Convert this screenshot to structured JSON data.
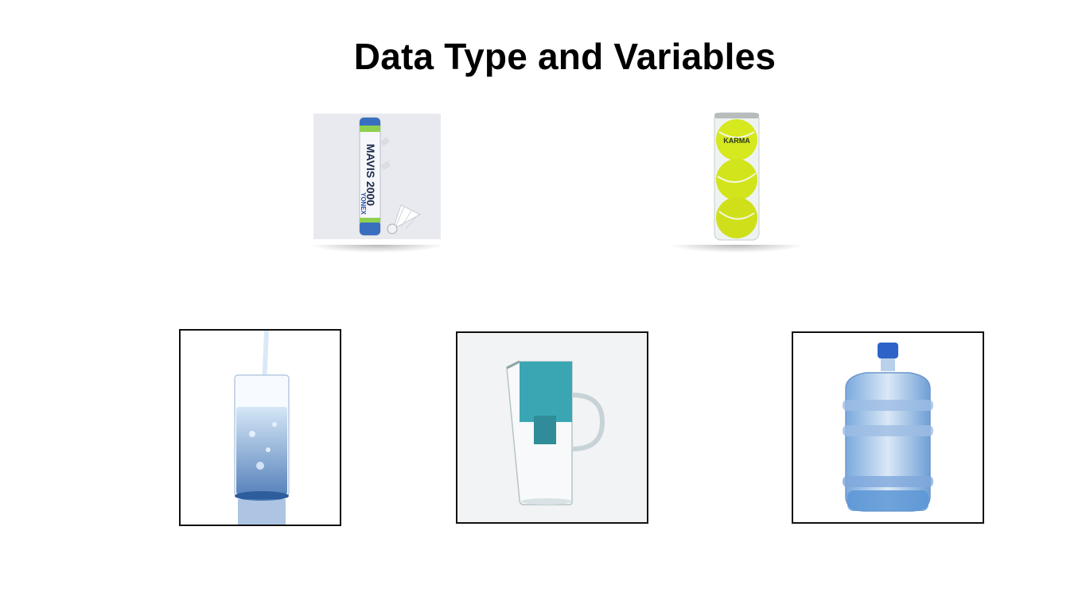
{
  "slide": {
    "title": "Data Type and Variables"
  },
  "images": {
    "shuttlecock_tube": {
      "icon": "shuttlecock-tube-icon",
      "brand_text": "MAVIS 2000",
      "maker_text": "YONEX"
    },
    "tennis_ball_can": {
      "icon": "tennis-ball-can-icon",
      "ball_color": "#d6e81e"
    },
    "water_glass": {
      "icon": "water-glass-icon"
    },
    "water_pitcher": {
      "icon": "water-pitcher-icon",
      "accent": "#3aa6b4"
    },
    "water_jug": {
      "icon": "water-jug-icon",
      "accent": "#5c97d6"
    }
  }
}
